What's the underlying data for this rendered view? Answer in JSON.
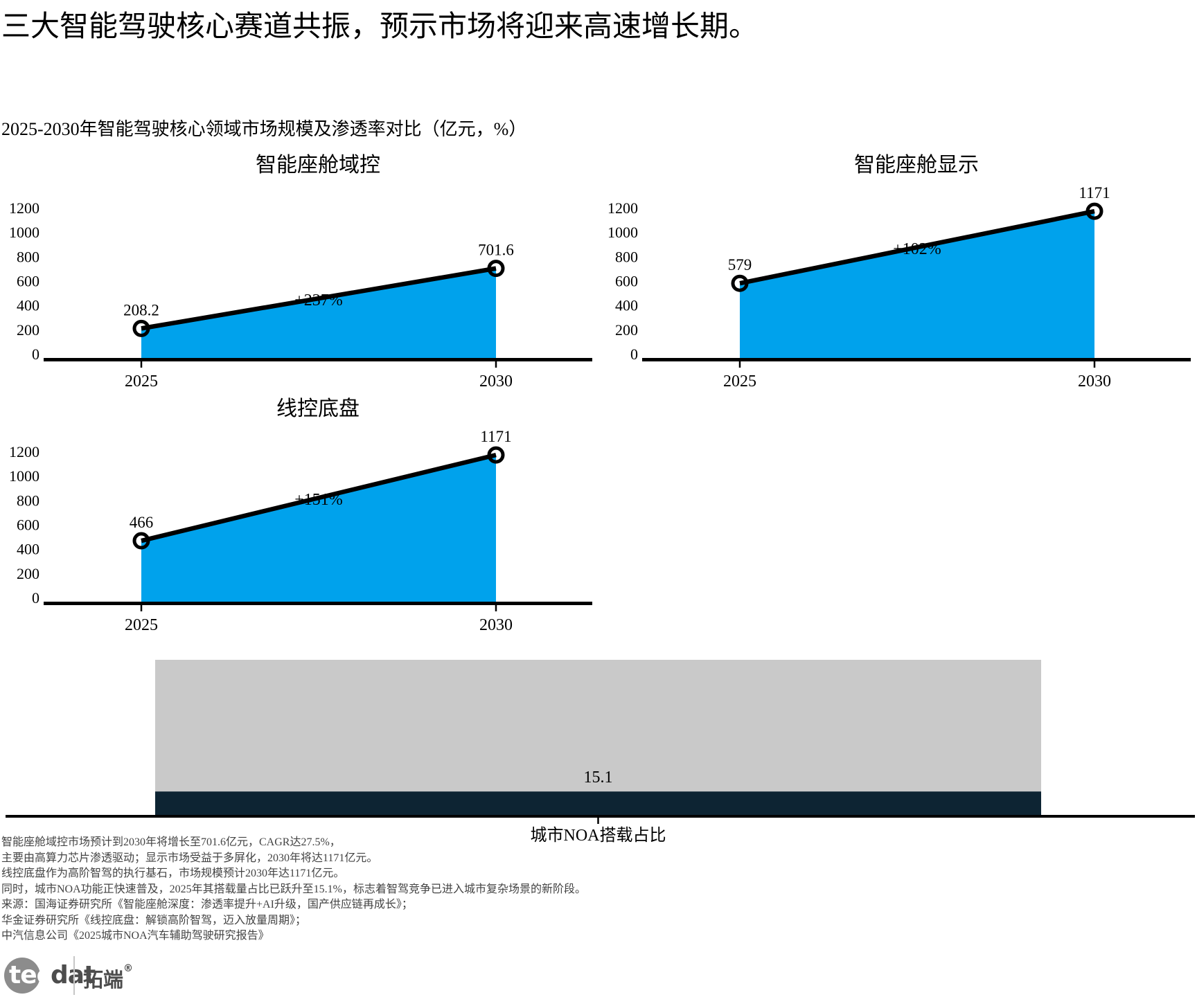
{
  "page": {
    "title": "三大智能驾驶核心赛道共振，预示市场将迎来高速增长期。",
    "subtitle": "2025-2030年智能驾驶核心领域市场规模及渗透率对比（亿元，%）"
  },
  "colors": {
    "area_fill": "#00a2ec",
    "trend_line": "#000000",
    "bar_gray": "#c9c9c9",
    "bar_navy": "#0d2433",
    "axis": "#000000",
    "footnote_text": "#434343"
  },
  "chart_data": [
    {
      "type": "area",
      "title": "智能座舱域控",
      "x": [
        "2025",
        "2030"
      ],
      "values": [
        208.2,
        701.6
      ],
      "point_labels": [
        "208.2",
        "701.6"
      ],
      "growth_label": "+237%",
      "ylim": [
        0,
        1200
      ],
      "yticks": [
        "0",
        "200",
        "400",
        "600",
        "800",
        "1000",
        "1200"
      ],
      "grid": false,
      "legend": "none"
    },
    {
      "type": "area",
      "title": "智能座舱显示",
      "x": [
        "2025",
        "2030"
      ],
      "values": [
        579,
        1171
      ],
      "point_labels": [
        "579",
        "1171"
      ],
      "growth_label": "+102%",
      "ylim": [
        0,
        1200
      ],
      "yticks": [
        "0",
        "200",
        "400",
        "600",
        "800",
        "1000",
        "1200"
      ],
      "grid": false,
      "legend": "none"
    },
    {
      "type": "area",
      "title": "线控底盘",
      "x": [
        "2025",
        "2030"
      ],
      "values": [
        466,
        1171
      ],
      "point_labels": [
        "466",
        "1171"
      ],
      "growth_label": "+151%",
      "ylim": [
        0,
        1200
      ],
      "yticks": [
        "0",
        "200",
        "400",
        "600",
        "800",
        "1000",
        "1200"
      ],
      "grid": false,
      "legend": "none"
    },
    {
      "type": "stacked-bar",
      "category": "城市NOA搭载占比",
      "value": 15.1,
      "value_label": "15.1",
      "remainder": 84.9,
      "ylim": [
        0,
        100
      ],
      "grid": false,
      "legend": "none"
    }
  ],
  "footnotes": [
    "智能座舱域控市场预计到2030年将增长至701.6亿元，CAGR达27.5%，",
    "主要由高算力芯片渗透驱动；显示市场受益于多屏化，2030年将达1171亿元。",
    "线控底盘作为高阶智驾的执行基石，市场规模预计2030年达1171亿元。",
    "同时，城市NOA功能正快速普及，2025年其搭载量占比已跃升至15.1%，标志着智驾竞争已进入城市复杂场景的新阶段。",
    "来源：国海证券研究所《智能座舱深度：渗透率提升+AI升级，国产供应链再成长》；",
    "华金证券研究所《线控底盘：解锁高阶智驾，迈入放量周期》；",
    "中汽信息公司《2025城市NOA汽车辅助驾驶研究报告》"
  ],
  "logo": {
    "brand_prefix": "tec",
    "brand_suffix": "dat",
    "name_cn": "拓端",
    "reg_mark": "®"
  }
}
